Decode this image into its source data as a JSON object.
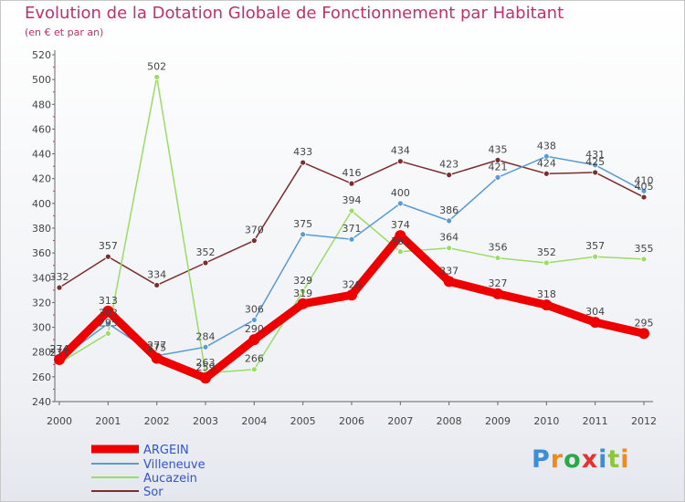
{
  "title": "Evolution de la Dotation Globale de Fonctionnement par Habitant",
  "subtitle": "(en € et par an)",
  "logo": {
    "text": "Proxiti",
    "colors": [
      "#3a8fd8",
      "#f08a1c",
      "#2aa84a",
      "#e83030",
      "#3a8fd8",
      "#8cc63f",
      "#f08a1c"
    ]
  },
  "chart_data": {
    "type": "line",
    "title": "Evolution de la Dotation Globale de Fonctionnement par Habitant",
    "subtitle": "(en € et par an)",
    "xlabel": "",
    "ylabel": "",
    "ylim": [
      240,
      520
    ],
    "yticks": [
      240,
      260,
      280,
      300,
      320,
      340,
      360,
      380,
      400,
      420,
      440,
      460,
      480,
      500,
      520
    ],
    "x": [
      "2000",
      "2001",
      "2002",
      "2003",
      "2004",
      "2005",
      "2006",
      "2007",
      "2008",
      "2009",
      "2010",
      "2011",
      "2012"
    ],
    "grid": false,
    "legend_position": "bottom-left",
    "series": [
      {
        "name": "ARGEIN",
        "color": "#ee0000",
        "values": [
          274,
          313,
          275,
          259,
          290,
          319,
          326,
          374,
          337,
          327,
          318,
          304,
          295
        ]
      },
      {
        "name": "Villeneuve",
        "color": "#5b9bd5",
        "values": [
          274,
          303,
          277,
          284,
          306,
          375,
          371,
          400,
          386,
          421,
          438,
          431,
          410
        ]
      },
      {
        "name": "Aucazein",
        "color": "#99dd66",
        "values": [
          271,
          295,
          502,
          263,
          266,
          329,
          394,
          361,
          364,
          356,
          352,
          357,
          355
        ]
      },
      {
        "name": "Sor",
        "color": "#7a2e2e",
        "values": [
          332,
          357,
          334,
          352,
          370,
          433,
          416,
          434,
          423,
          435,
          424,
          425,
          405
        ]
      }
    ]
  }
}
